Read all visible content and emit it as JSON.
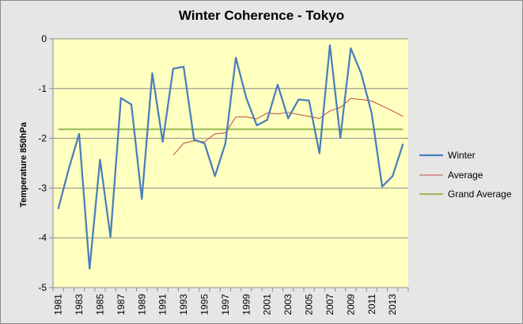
{
  "chart_data": {
    "type": "line",
    "title": "Winter Coherence - Tokyo",
    "xlabel": "",
    "ylabel": "Temperature 850hPa",
    "ylim": [
      -5,
      0
    ],
    "yticks": [
      0,
      -1,
      -2,
      -3,
      -4,
      -5
    ],
    "grid": true,
    "legend_position": "right",
    "plot_background": "#ffffc0",
    "x": [
      1981,
      1982,
      1983,
      1984,
      1985,
      1986,
      1987,
      1988,
      1989,
      1990,
      1991,
      1992,
      1993,
      1994,
      1995,
      1996,
      1997,
      1998,
      1999,
      2000,
      2001,
      2002,
      2003,
      2004,
      2005,
      2006,
      2007,
      2008,
      2009,
      2010,
      2011,
      2012,
      2013,
      2014
    ],
    "x_tick_labels": [
      "1981",
      "1983",
      "1985",
      "1987",
      "1989",
      "1991",
      "1993",
      "1995",
      "1997",
      "1999",
      "2001",
      "2003",
      "2005",
      "2007",
      "2009",
      "2011",
      "2013"
    ],
    "series": [
      {
        "name": "Winter",
        "color": "#4a7ebb",
        "values": [
          -3.42,
          -2.62,
          -1.91,
          -4.62,
          -2.43,
          -3.98,
          -1.19,
          -1.32,
          -3.22,
          -0.69,
          -2.07,
          -0.6,
          -0.56,
          -2.03,
          -2.1,
          -2.76,
          -2.1,
          -0.38,
          -1.19,
          -1.74,
          -1.63,
          -0.92,
          -1.6,
          -1.22,
          -1.24,
          -2.3,
          -0.13,
          -1.99,
          -0.19,
          -0.7,
          -1.5,
          -2.97,
          -2.76,
          -2.11
        ]
      },
      {
        "name": "Average",
        "color": "#be4b48",
        "values": [
          null,
          null,
          null,
          null,
          null,
          null,
          null,
          null,
          null,
          null,
          null,
          -2.34,
          -2.1,
          -2.05,
          -2.07,
          -1.91,
          -1.89,
          -1.57,
          -1.57,
          -1.61,
          -1.49,
          -1.51,
          -1.48,
          -1.52,
          -1.56,
          -1.6,
          -1.45,
          -1.38,
          -1.2,
          -1.22,
          -1.25,
          -1.35,
          -1.45,
          -1.56
        ]
      },
      {
        "name": "Grand Average",
        "color": "#98b954",
        "values": [
          -1.82,
          -1.82,
          -1.82,
          -1.82,
          -1.82,
          -1.82,
          -1.82,
          -1.82,
          -1.82,
          -1.82,
          -1.82,
          -1.82,
          -1.82,
          -1.82,
          -1.82,
          -1.82,
          -1.82,
          -1.82,
          -1.82,
          -1.82,
          -1.82,
          -1.82,
          -1.82,
          -1.82,
          -1.82,
          -1.82,
          -1.82,
          -1.82,
          -1.82,
          -1.82,
          -1.82,
          -1.82,
          -1.82,
          -1.82
        ]
      }
    ]
  }
}
